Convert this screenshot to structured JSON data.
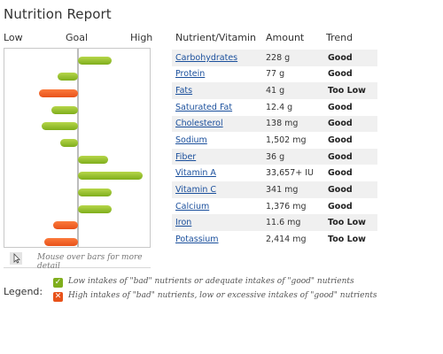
{
  "title": "Nutrition Report",
  "scale": {
    "low": "Low",
    "goal": "Goal",
    "high": "High"
  },
  "columns": {
    "nutrient": "Nutrient/Vitamin",
    "amount": "Amount",
    "trend": "Trend"
  },
  "rows": [
    {
      "name": "Carbohydrates",
      "amount": "228 g",
      "trend": "Good",
      "status": "good",
      "level": 0.49
    },
    {
      "name": "Protein",
      "amount": "77 g",
      "trend": "Good",
      "status": "good",
      "level": -0.3
    },
    {
      "name": "Fats",
      "amount": "41 g",
      "trend": "Too Low",
      "status": "bad",
      "level": -0.57
    },
    {
      "name": "Saturated Fat",
      "amount": "12.4 g",
      "trend": "Good",
      "status": "good",
      "level": -0.38
    },
    {
      "name": "Cholesterol",
      "amount": "138 mg",
      "trend": "Good",
      "status": "good",
      "level": -0.52
    },
    {
      "name": "Sodium",
      "amount": "1,502 mg",
      "trend": "Good",
      "status": "good",
      "level": -0.26
    },
    {
      "name": "Fiber",
      "amount": "36 g",
      "trend": "Good",
      "status": "good",
      "level": 0.43
    },
    {
      "name": "Vitamin A",
      "amount": "33,657+ IU",
      "trend": "Good",
      "status": "good",
      "level": 0.94
    },
    {
      "name": "Vitamin C",
      "amount": "341 mg",
      "trend": "Good",
      "status": "good",
      "level": 0.49
    },
    {
      "name": "Calcium",
      "amount": "1,376 mg",
      "trend": "Good",
      "status": "good",
      "level": 0.49
    },
    {
      "name": "Iron",
      "amount": "11.6 mg",
      "trend": "Too Low",
      "status": "bad",
      "level": -0.36
    },
    {
      "name": "Potassium",
      "amount": "2,414 mg",
      "trend": "Too Low",
      "status": "bad",
      "level": -0.49
    }
  ],
  "mouseover_hint": "Mouse over bars for more detail",
  "legend": {
    "label": "Legend:",
    "good_text": "Low intakes of \"bad\" nutrients or adequate intakes of \"good\" nutrients",
    "bad_text": "High intakes of \"bad\" nutrients, low or excessive intakes of \"good\" nutrients",
    "good_icon": "check-icon",
    "bad_icon": "x-icon"
  },
  "colors": {
    "good": "#7fae1c",
    "bad": "#e8521a",
    "link": "#1a4f9c"
  }
}
